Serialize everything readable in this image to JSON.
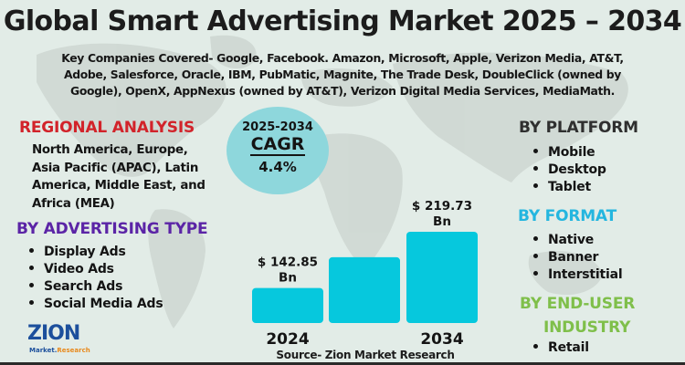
{
  "title": "Global Smart Advertising Market 2025 – 2034",
  "companies": "Key Companies Covered- Google, Facebook. Amazon, Microsoft, Apple, Verizon Media, AT&T, Adobe, Salesforce, Oracle, IBM, PubMatic, Magnite, The Trade Desk, DoubleClick (owned by Google), OpenX, AppNexus (owned by AT&T), Verizon Digital Media Services, MediaMath.",
  "regional": {
    "heading": "REGIONAL ANALYSIS",
    "text": "North America, Europe, Asia Pacific (APAC), Latin America, Middle East, and Africa (MEA)"
  },
  "advertising_type": {
    "heading": "BY ADVERTISING TYPE",
    "items": [
      "Display Ads",
      "Video Ads",
      "Search Ads",
      "Social Media Ads"
    ]
  },
  "platform": {
    "heading": "BY PLATFORM",
    "items": [
      "Mobile",
      "Desktop",
      "Tablet"
    ]
  },
  "format": {
    "heading": "BY FORMAT",
    "items": [
      "Native",
      "Banner",
      "Interstitial"
    ]
  },
  "end_user": {
    "heading_line1": "BY END-USER",
    "heading_line2": "INDUSTRY",
    "items": [
      "Retail"
    ]
  },
  "cagr": {
    "period": "2025-2034",
    "label": "CAGR",
    "value": "4.4%"
  },
  "colors": {
    "bar": "#06c8dd",
    "regional_heading": "#d2232a",
    "advertising_heading": "#5b24a6",
    "format_heading": "#24b6df",
    "end_user_heading": "#7fbf4a",
    "cagr_circle": "#8ed7dc"
  },
  "source": "Source- Zion Market Research",
  "logo": {
    "word": "ZION",
    "sub_market": "Market.",
    "sub_research": "Research"
  },
  "chart_data": {
    "type": "bar",
    "title": "Global Smart Advertising Market 2025 – 2034",
    "categories": [
      "2024",
      "",
      "2034"
    ],
    "values": [
      142.85,
      185,
      219.73
    ],
    "data_labels": [
      "$ 142.85 Bn",
      "",
      "$ 219.73 Bn"
    ],
    "xlabel": "",
    "ylabel": "",
    "units": "USD Billion",
    "grid": false,
    "legend": "none",
    "note": "Middle bar is unlabeled; its value is estimated from its height."
  }
}
